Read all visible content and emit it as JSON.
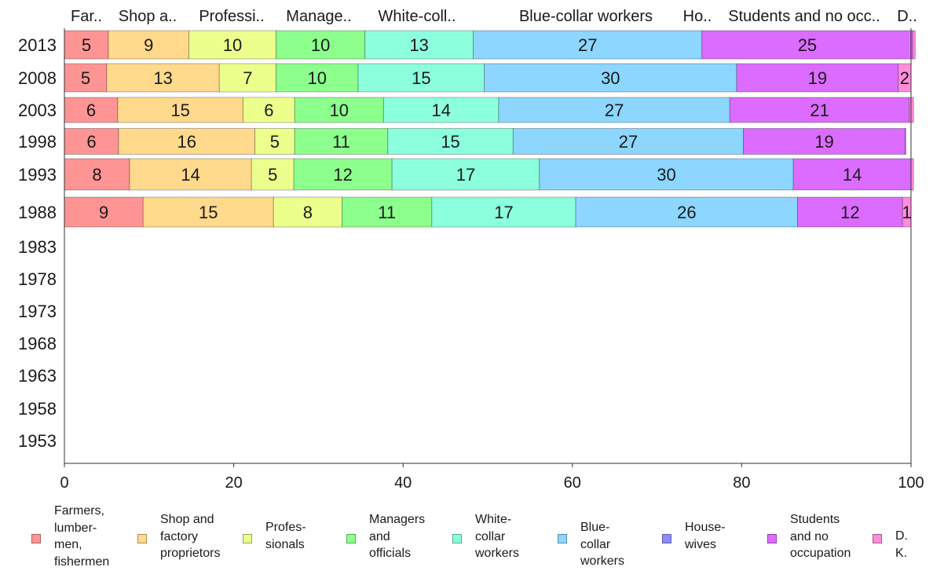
{
  "chart_data": {
    "type": "bar",
    "orientation": "horizontal",
    "stacked": true,
    "categories": [
      "2013",
      "2008",
      "2003",
      "1998",
      "1993",
      "1988",
      "1983",
      "1978",
      "1973",
      "1968",
      "1963",
      "1958",
      "1953"
    ],
    "top_labels": [
      "Far..",
      "Shop a..",
      "Professi..",
      "Manage..",
      "White-coll..",
      "Blue-collar workers",
      "Ho..",
      "Students and no occ..",
      "D.."
    ],
    "series": [
      {
        "name": "Farmers,\nlumber-\nmen,\nfishermen",
        "color": "#ff9494",
        "values": [
          5.2,
          5,
          6.3,
          6.4,
          7.7,
          9.3,
          null,
          null,
          null,
          null,
          null,
          null,
          null
        ],
        "labels": [
          "5",
          "5",
          "6",
          "6",
          "8",
          "9"
        ]
      },
      {
        "name": "Shop and\nfactory\nproprietors",
        "color": "#ffd98c",
        "values": [
          9.5,
          13.3,
          14.8,
          16.1,
          14.4,
          15.4,
          null,
          null,
          null,
          null,
          null,
          null,
          null
        ],
        "labels": [
          "9",
          "13",
          "15",
          "16",
          "14",
          "15"
        ]
      },
      {
        "name": "Profes-\nsionals",
        "color": "#ecff8c",
        "values": [
          10.3,
          6.7,
          6.1,
          4.7,
          5,
          8.1,
          null,
          null,
          null,
          null,
          null,
          null,
          null
        ],
        "labels": [
          "10",
          "7",
          "6",
          "5",
          "5",
          "8"
        ]
      },
      {
        "name": "Managers\nand\nofficials",
        "color": "#8cff8c",
        "values": [
          10.5,
          9.7,
          10.5,
          11,
          11.6,
          10.6,
          null,
          null,
          null,
          null,
          null,
          null,
          null
        ],
        "labels": [
          "10",
          "10",
          "10",
          "11",
          "12",
          "11"
        ]
      },
      {
        "name": "White-\ncollar\nworkers",
        "color": "#8cffdc",
        "values": [
          12.8,
          14.9,
          13.6,
          14.8,
          17.4,
          17,
          null,
          null,
          null,
          null,
          null,
          null,
          null
        ],
        "labels": [
          "13",
          "15",
          "14",
          "15",
          "17",
          "17"
        ]
      },
      {
        "name": "Blue-collar\nworkers",
        "color": "#8cd6ff",
        "values": [
          27,
          29.8,
          27.3,
          27.2,
          30,
          26.2,
          null,
          null,
          null,
          null,
          null,
          null,
          null
        ],
        "labels": [
          "27",
          "30",
          "27",
          "27",
          "30",
          "26"
        ]
      },
      {
        "name": "House-\nwives",
        "color": "#8c8cff",
        "values": [
          0,
          0,
          0,
          0,
          0,
          0,
          null,
          null,
          null,
          null,
          null,
          null,
          null
        ],
        "labels": [
          "",
          "",
          "",
          "",
          "",
          ""
        ]
      },
      {
        "name": "Students\nand no\noccupation",
        "color": "#dc6cff",
        "values": [
          24.9,
          19.1,
          21.2,
          19.1,
          13.9,
          12.4,
          null,
          null,
          null,
          null,
          null,
          null,
          null
        ],
        "labels": [
          "25",
          "19",
          "21",
          "19",
          "14",
          "12"
        ]
      },
      {
        "name": "D. K.",
        "color": "#ff8cdc",
        "values": [
          0.3,
          1.5,
          0.5,
          0.1,
          0.3,
          1,
          null,
          null,
          null,
          null,
          null,
          null,
          null
        ],
        "labels": [
          "",
          "2",
          "",
          "",
          "",
          "1"
        ]
      }
    ],
    "xlim": [
      0,
      100
    ],
    "xticks": [
      "0",
      "20",
      "40",
      "60",
      "80",
      "100"
    ],
    "grid": false,
    "legend_position": "bottom"
  }
}
